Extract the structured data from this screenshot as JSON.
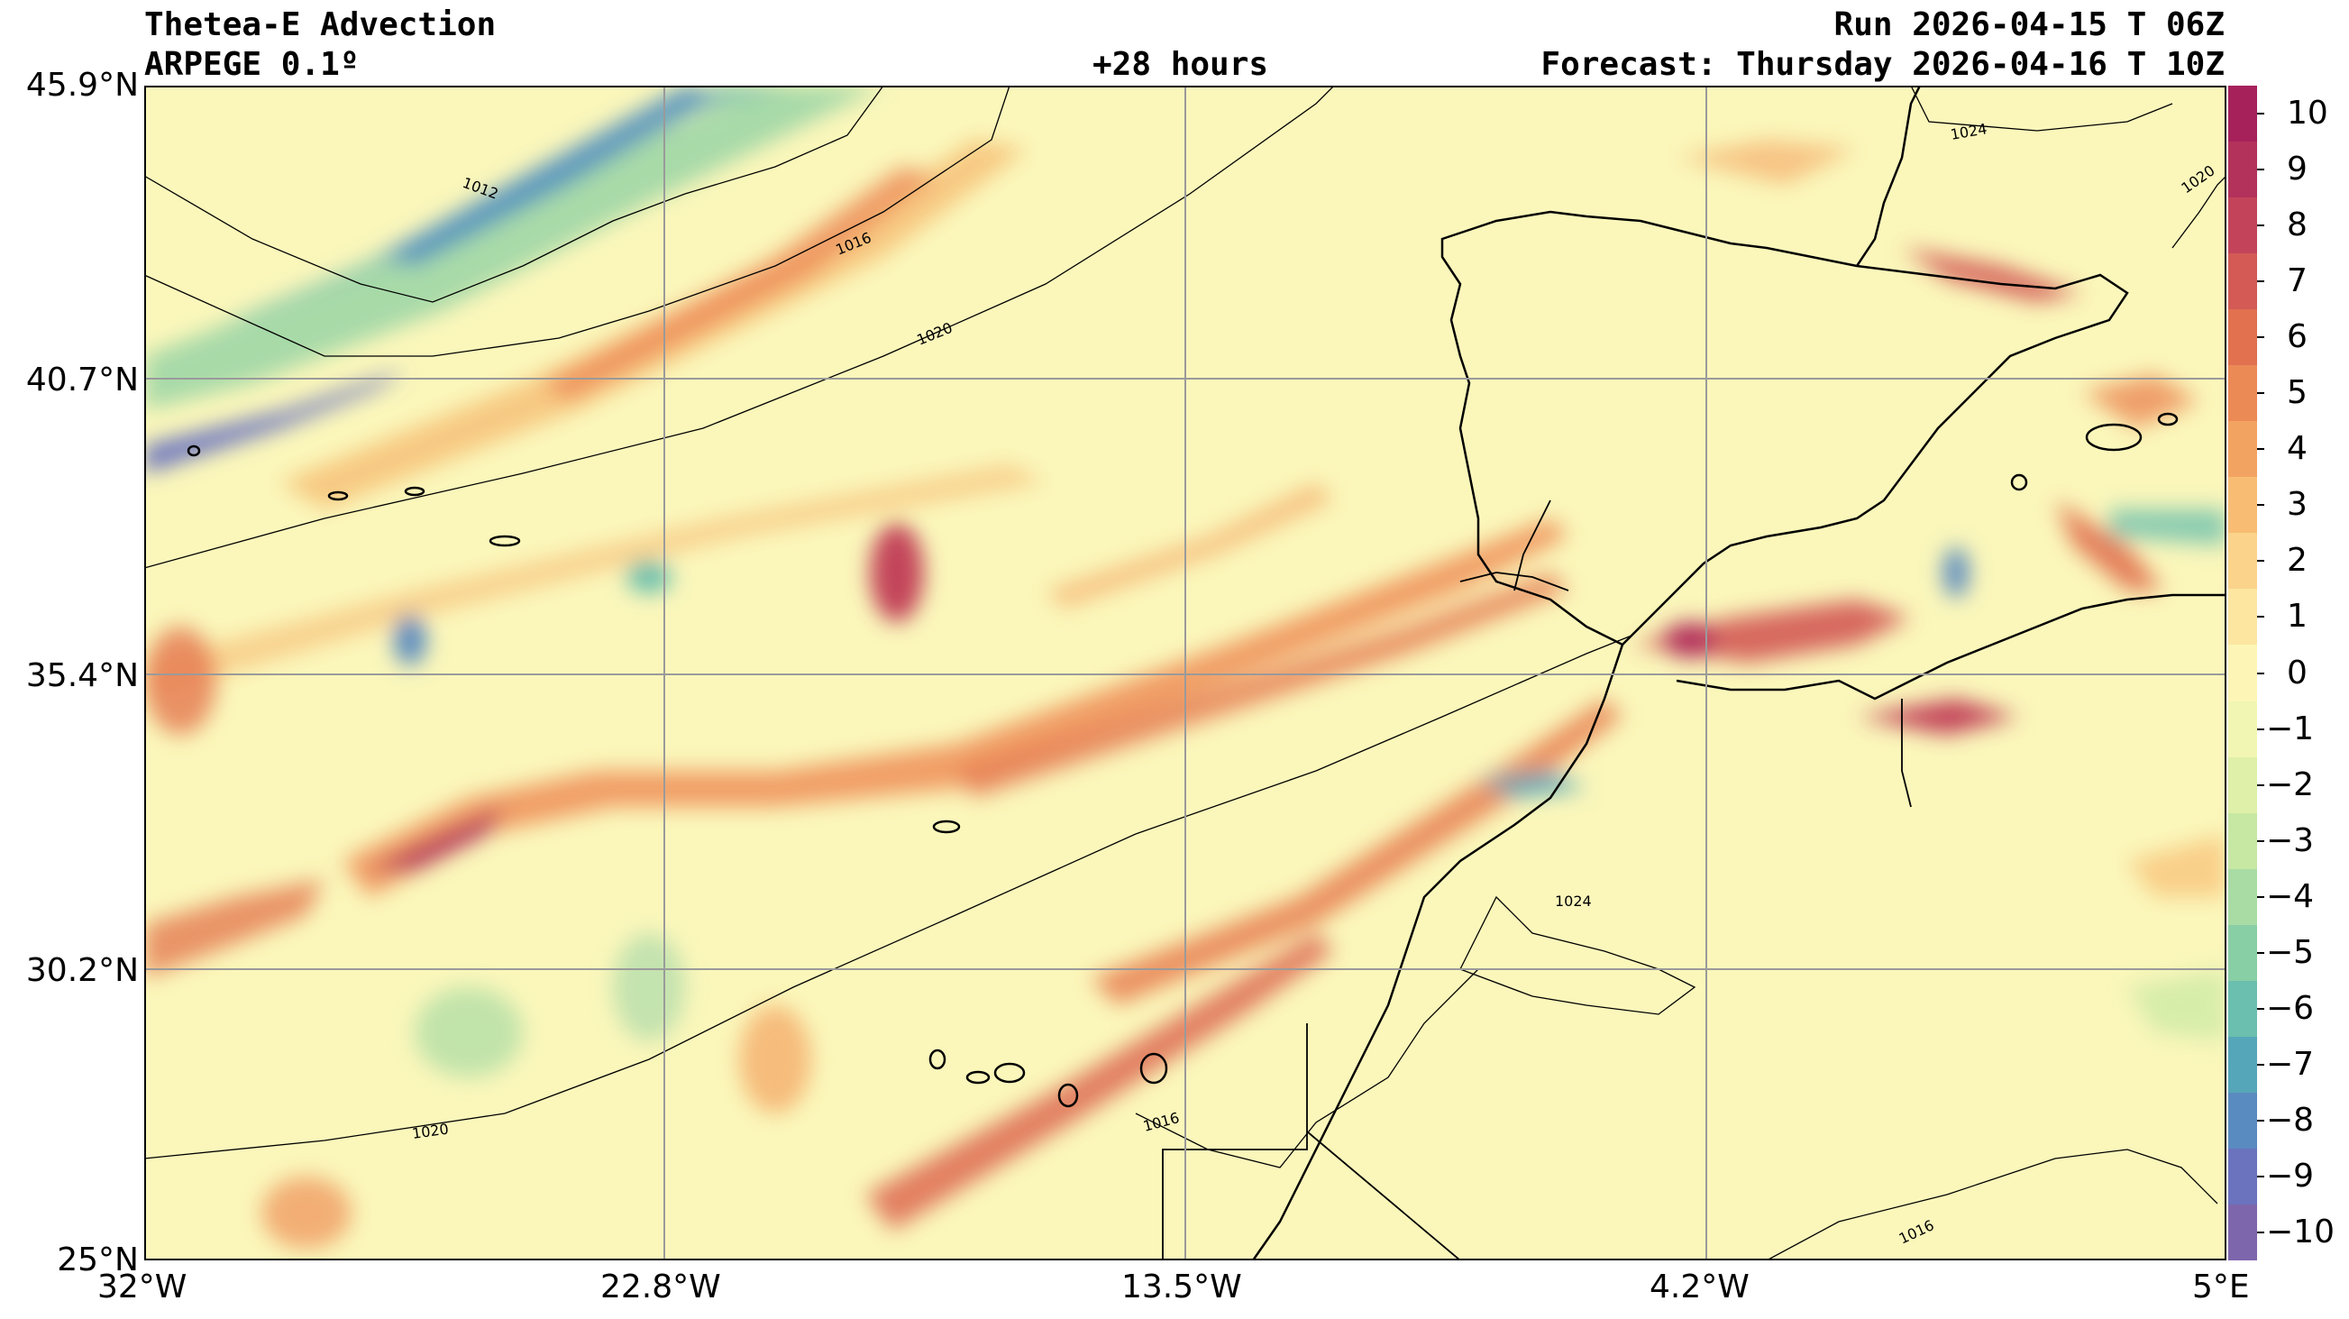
{
  "header": {
    "title": "Thetea-E Advection",
    "model": "ARPEGE 0.1º",
    "lead": "+28 hours",
    "run": "Run 2026-04-15 T 06Z",
    "forecast": "Forecast: Thursday 2026-04-16 T 10Z"
  },
  "axes": {
    "lat_labels": [
      "45.9°N",
      "40.7°N",
      "35.4°N",
      "30.2°N",
      "25°N"
    ],
    "lon_labels": [
      "32°W",
      "22.8°W",
      "13.5°W",
      "4.2°W",
      "5°E"
    ]
  },
  "isobars": {
    "labels": [
      "1012",
      "1016",
      "1020",
      "1020",
      "1024",
      "1020",
      "1024",
      "1016",
      "1016"
    ]
  },
  "colorbar": {
    "ticks": [
      "10",
      "9",
      "8",
      "7",
      "6",
      "5",
      "4",
      "3",
      "2",
      "1",
      "0",
      "−1",
      "−2",
      "−3",
      "−4",
      "−5",
      "−6",
      "−7",
      "−8",
      "−9",
      "−10"
    ],
    "colors": [
      "#a6215a",
      "#b3325b",
      "#c3445a",
      "#d35a55",
      "#e1714f",
      "#ec8a55",
      "#f3a361",
      "#f8bd73",
      "#fbd38a",
      "#fce6a0",
      "#fdf5b6",
      "#f1f6b2",
      "#dff0a8",
      "#c6e8a3",
      "#a8dca4",
      "#88cfa5",
      "#6abfae",
      "#56a6b9",
      "#5a8bc0",
      "#6b73bf",
      "#7e66ad"
    ]
  }
}
